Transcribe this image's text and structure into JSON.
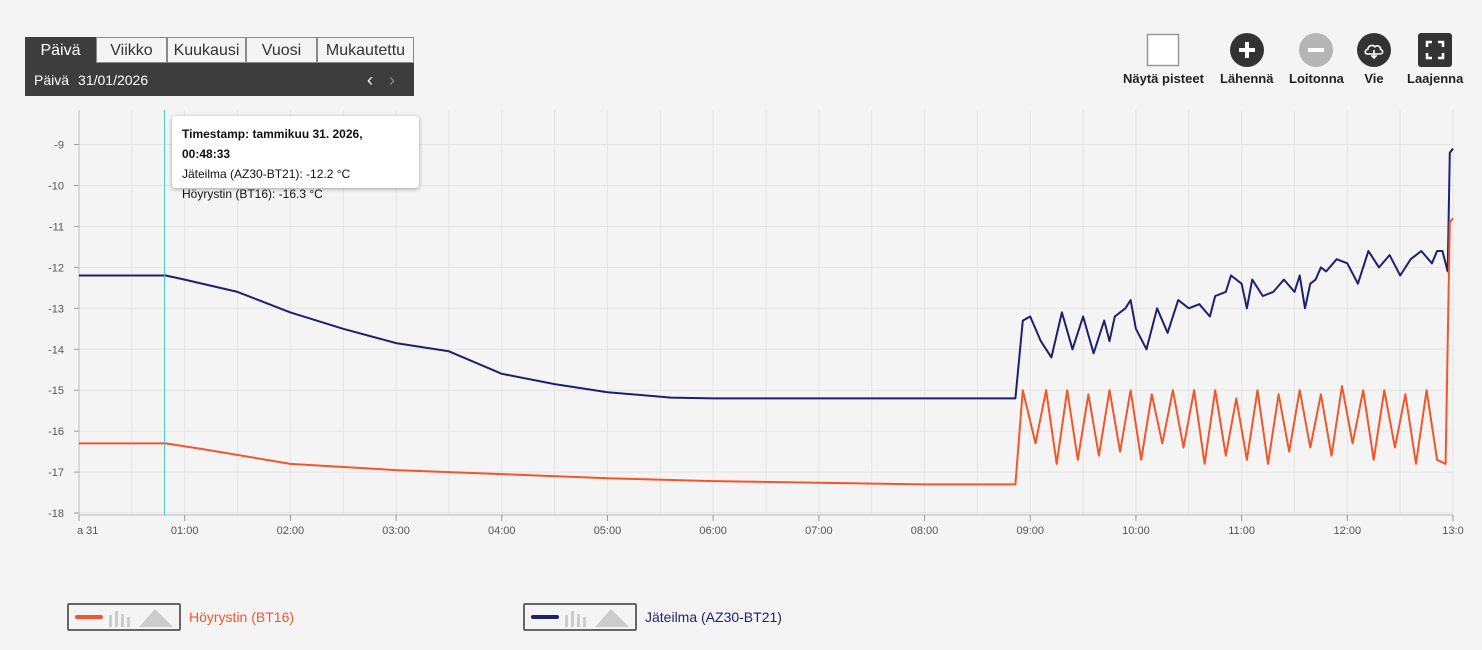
{
  "period_tabs": {
    "items": [
      {
        "label": "Päivä",
        "active": true
      },
      {
        "label": "Viikko",
        "active": false
      },
      {
        "label": "Kuukausi",
        "active": false
      },
      {
        "label": "Vuosi",
        "active": false
      },
      {
        "label": "Mukautettu",
        "active": false
      }
    ],
    "period_label": "Päivä",
    "date_value": "31/01/2026"
  },
  "toolbar": {
    "show_points_label": "Näytä pisteet",
    "zoom_in_label": "Lähennä",
    "zoom_out_label": "Loitonna",
    "export_label": "Vie",
    "expand_label": "Laajenna"
  },
  "tooltip": {
    "timestamp": "Timestamp: tammikuu 31. 2026, 00:48:33",
    "line1": "Jäteilma (AZ30-BT21): -12.2 °C",
    "line2": "Höyrystin (BT16): -16.3 °C"
  },
  "legend": [
    {
      "label": "Höyrystin (BT16)",
      "color": "#f4552a"
    },
    {
      "label": "Jäteilma (AZ30-BT21)",
      "color": "#1d1f70"
    }
  ],
  "chart_data": {
    "type": "line",
    "ylim": [
      -18,
      -8.5
    ],
    "yticks": [
      -9,
      -10,
      -11,
      -12,
      -13,
      -14,
      -15,
      -16,
      -17,
      -18
    ],
    "ytick_labels": [
      "-9",
      "-10",
      "-11",
      "-12",
      "-13",
      "-14",
      "-15",
      "-16",
      "-17",
      "-18"
    ],
    "x_range_hours": [
      0,
      13
    ],
    "x_tick_hours": [
      0,
      1,
      2,
      3,
      4,
      5,
      6,
      7,
      8,
      9,
      10,
      11,
      12,
      13
    ],
    "x_tick_labels": [
      "a 31",
      "01:00",
      "02:00",
      "03:00",
      "04:00",
      "05:00",
      "06:00",
      "07:00",
      "08:00",
      "09:00",
      "10:00",
      "11:00",
      "12:00",
      "13:0"
    ],
    "crosshair_hour": 0.81,
    "series": [
      {
        "name": "Jäteilma (AZ30-BT21)",
        "color": "#1d1f70",
        "points": [
          [
            0,
            -12.2
          ],
          [
            0.82,
            -12.2
          ],
          [
            1.0,
            -12.3
          ],
          [
            1.5,
            -12.6
          ],
          [
            2.0,
            -13.1
          ],
          [
            2.5,
            -13.5
          ],
          [
            3.0,
            -13.85
          ],
          [
            3.5,
            -14.05
          ],
          [
            4.0,
            -14.6
          ],
          [
            4.5,
            -14.85
          ],
          [
            5.0,
            -15.05
          ],
          [
            5.6,
            -15.18
          ],
          [
            6.0,
            -15.2
          ],
          [
            8.86,
            -15.2
          ],
          [
            8.93,
            -13.3
          ],
          [
            9.0,
            -13.2
          ],
          [
            9.1,
            -13.8
          ],
          [
            9.2,
            -14.2
          ],
          [
            9.3,
            -13.1
          ],
          [
            9.4,
            -14.0
          ],
          [
            9.5,
            -13.2
          ],
          [
            9.6,
            -14.1
          ],
          [
            9.7,
            -13.3
          ],
          [
            9.75,
            -13.8
          ],
          [
            9.8,
            -13.2
          ],
          [
            9.9,
            -13.0
          ],
          [
            9.95,
            -12.8
          ],
          [
            10.0,
            -13.5
          ],
          [
            10.1,
            -14.0
          ],
          [
            10.2,
            -13.0
          ],
          [
            10.3,
            -13.6
          ],
          [
            10.4,
            -12.8
          ],
          [
            10.5,
            -13.0
          ],
          [
            10.6,
            -12.9
          ],
          [
            10.7,
            -13.2
          ],
          [
            10.75,
            -12.7
          ],
          [
            10.85,
            -12.6
          ],
          [
            10.9,
            -12.2
          ],
          [
            11.0,
            -12.4
          ],
          [
            11.05,
            -13.0
          ],
          [
            11.1,
            -12.3
          ],
          [
            11.2,
            -12.7
          ],
          [
            11.3,
            -12.6
          ],
          [
            11.4,
            -12.3
          ],
          [
            11.5,
            -12.6
          ],
          [
            11.55,
            -12.2
          ],
          [
            11.6,
            -13.0
          ],
          [
            11.65,
            -12.4
          ],
          [
            11.7,
            -12.3
          ],
          [
            11.75,
            -12.0
          ],
          [
            11.8,
            -12.1
          ],
          [
            11.9,
            -11.8
          ],
          [
            12.0,
            -11.9
          ],
          [
            12.1,
            -12.4
          ],
          [
            12.2,
            -11.6
          ],
          [
            12.3,
            -12.0
          ],
          [
            12.4,
            -11.7
          ],
          [
            12.5,
            -12.2
          ],
          [
            12.6,
            -11.8
          ],
          [
            12.7,
            -11.6
          ],
          [
            12.8,
            -11.9
          ],
          [
            12.85,
            -11.6
          ],
          [
            12.9,
            -11.6
          ],
          [
            12.95,
            -12.1
          ],
          [
            12.97,
            -9.2
          ],
          [
            13.0,
            -9.1
          ]
        ]
      },
      {
        "name": "Höyrystin (BT16)",
        "color": "#f4552a",
        "points": [
          [
            0,
            -16.3
          ],
          [
            0.82,
            -16.3
          ],
          [
            1.2,
            -16.45
          ],
          [
            2.0,
            -16.8
          ],
          [
            3.0,
            -16.95
          ],
          [
            4.0,
            -17.05
          ],
          [
            5.0,
            -17.15
          ],
          [
            6.0,
            -17.22
          ],
          [
            7.0,
            -17.26
          ],
          [
            8.0,
            -17.3
          ],
          [
            8.86,
            -17.3
          ],
          [
            8.93,
            -15.0
          ],
          [
            9.05,
            -16.3
          ],
          [
            9.15,
            -15.0
          ],
          [
            9.25,
            -16.8
          ],
          [
            9.35,
            -15.0
          ],
          [
            9.45,
            -16.7
          ],
          [
            9.55,
            -15.1
          ],
          [
            9.65,
            -16.6
          ],
          [
            9.75,
            -15.0
          ],
          [
            9.85,
            -16.5
          ],
          [
            9.95,
            -15.0
          ],
          [
            10.05,
            -16.7
          ],
          [
            10.15,
            -15.1
          ],
          [
            10.25,
            -16.3
          ],
          [
            10.35,
            -15.0
          ],
          [
            10.45,
            -16.4
          ],
          [
            10.55,
            -15.0
          ],
          [
            10.65,
            -16.8
          ],
          [
            10.75,
            -15.0
          ],
          [
            10.85,
            -16.6
          ],
          [
            10.95,
            -15.2
          ],
          [
            11.05,
            -16.7
          ],
          [
            11.15,
            -15.0
          ],
          [
            11.25,
            -16.8
          ],
          [
            11.35,
            -15.1
          ],
          [
            11.45,
            -16.5
          ],
          [
            11.55,
            -15.0
          ],
          [
            11.65,
            -16.4
          ],
          [
            11.75,
            -15.1
          ],
          [
            11.85,
            -16.6
          ],
          [
            11.95,
            -14.9
          ],
          [
            12.05,
            -16.3
          ],
          [
            12.15,
            -15.0
          ],
          [
            12.25,
            -16.7
          ],
          [
            12.35,
            -15.0
          ],
          [
            12.45,
            -16.4
          ],
          [
            12.55,
            -15.1
          ],
          [
            12.65,
            -16.8
          ],
          [
            12.75,
            -15.0
          ],
          [
            12.85,
            -16.7
          ],
          [
            12.93,
            -16.8
          ],
          [
            12.97,
            -10.9
          ],
          [
            13.0,
            -10.8
          ]
        ]
      }
    ]
  }
}
